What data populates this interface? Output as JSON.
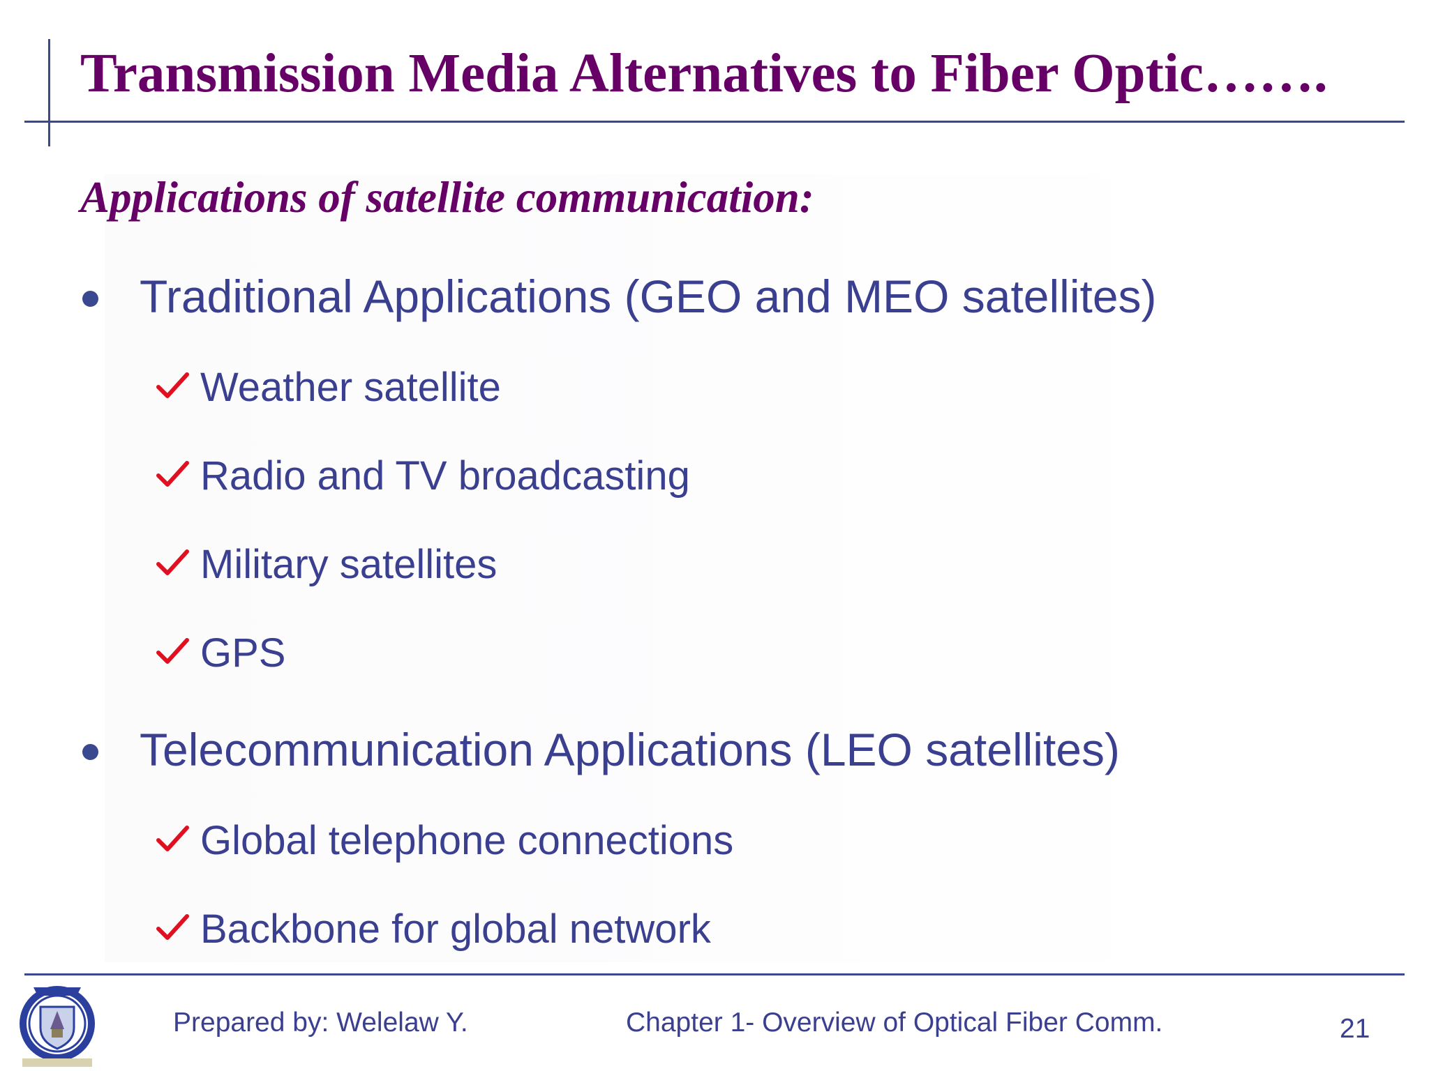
{
  "slide": {
    "title": "Transmission Media Alternatives to Fiber Optic…….",
    "subtitle": "Applications of satellite communication:",
    "bullets": [
      {
        "text": "Traditional Applications (GEO and MEO satellites)",
        "subitems": [
          "Weather satellite",
          "Radio and TV broadcasting",
          "Military satellites",
          "GPS"
        ]
      },
      {
        "text": "Telecommunication Applications (LEO satellites)",
        "subitems": [
          "Global telephone connections",
          "Backbone for global network"
        ]
      }
    ],
    "icons": {
      "bullet": "bullet-dot-icon",
      "subitem": "checkmark-icon",
      "logo": "university-crest-logo"
    },
    "colors": {
      "title": "#660066",
      "body_text": "#3a3f8f",
      "rule": "#3a4890",
      "check": "#e01020"
    }
  },
  "footer": {
    "author": "Prepared by: Welelaw Y.",
    "chapter": "Chapter 1- Overview of Optical Fiber Comm.",
    "page_number": "21"
  }
}
